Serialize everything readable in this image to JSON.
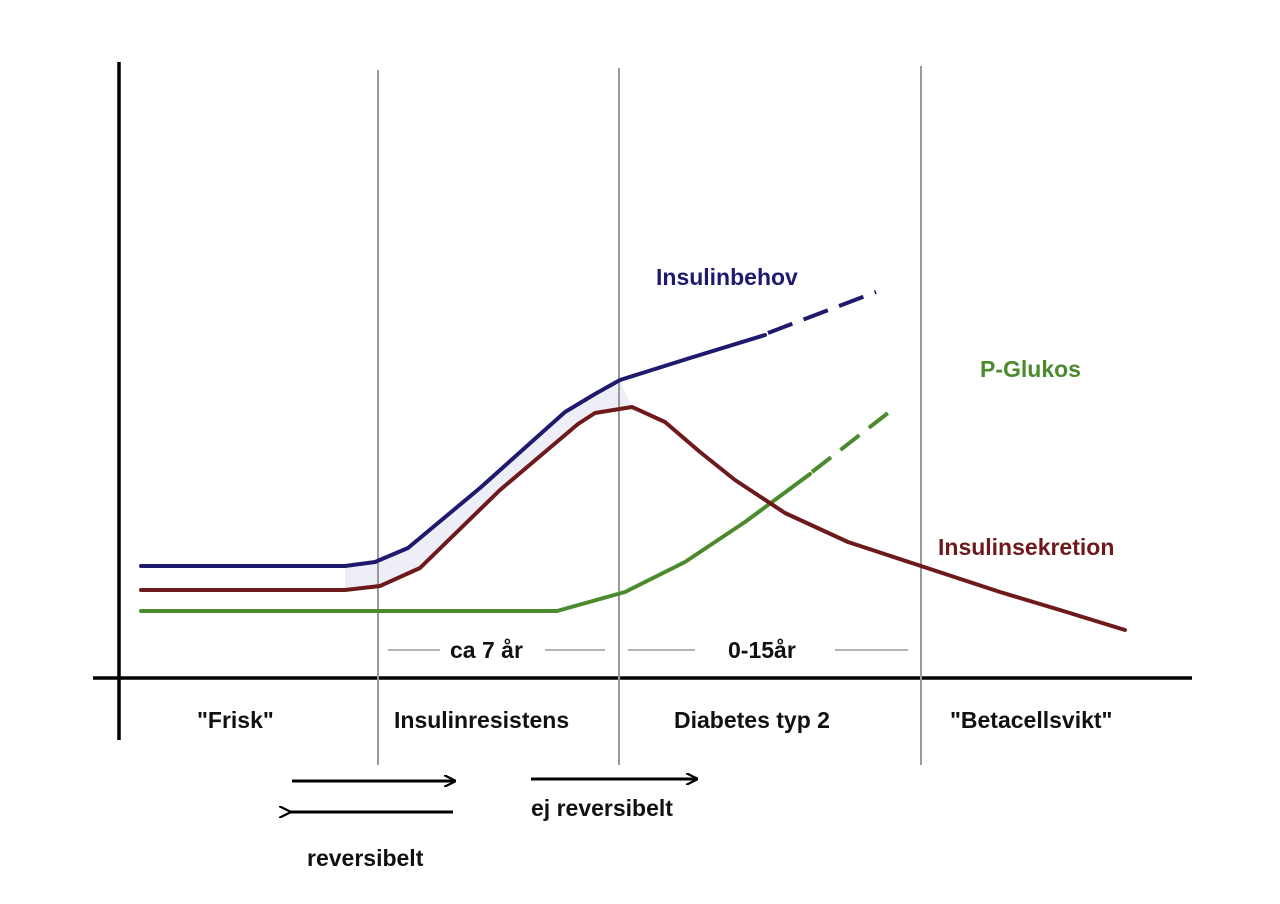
{
  "series": {
    "insulin_need": {
      "label": "Insulinbehov",
      "color": "#1f1a6e"
    },
    "glucose": {
      "label": "P-Glukos",
      "color": "#4c8a2e"
    },
    "insulin_secretion": {
      "label": "Insulinsekretion",
      "color": "#6e1a1c"
    }
  },
  "durations": {
    "resistance": "ca 7 år",
    "diabetes": "0-15år"
  },
  "phases": {
    "healthy": "\"Frisk\"",
    "resistance": "Insulinresistens",
    "diabetes": "Diabetes typ 2",
    "failure": "\"Betacellsvikt\""
  },
  "arrows": {
    "reversible": "reversibelt",
    "irreversible": "ej reversibelt"
  },
  "colors": {
    "axis": "#000000",
    "divider": "#9a9a9a",
    "band": "#eeeef6"
  }
}
